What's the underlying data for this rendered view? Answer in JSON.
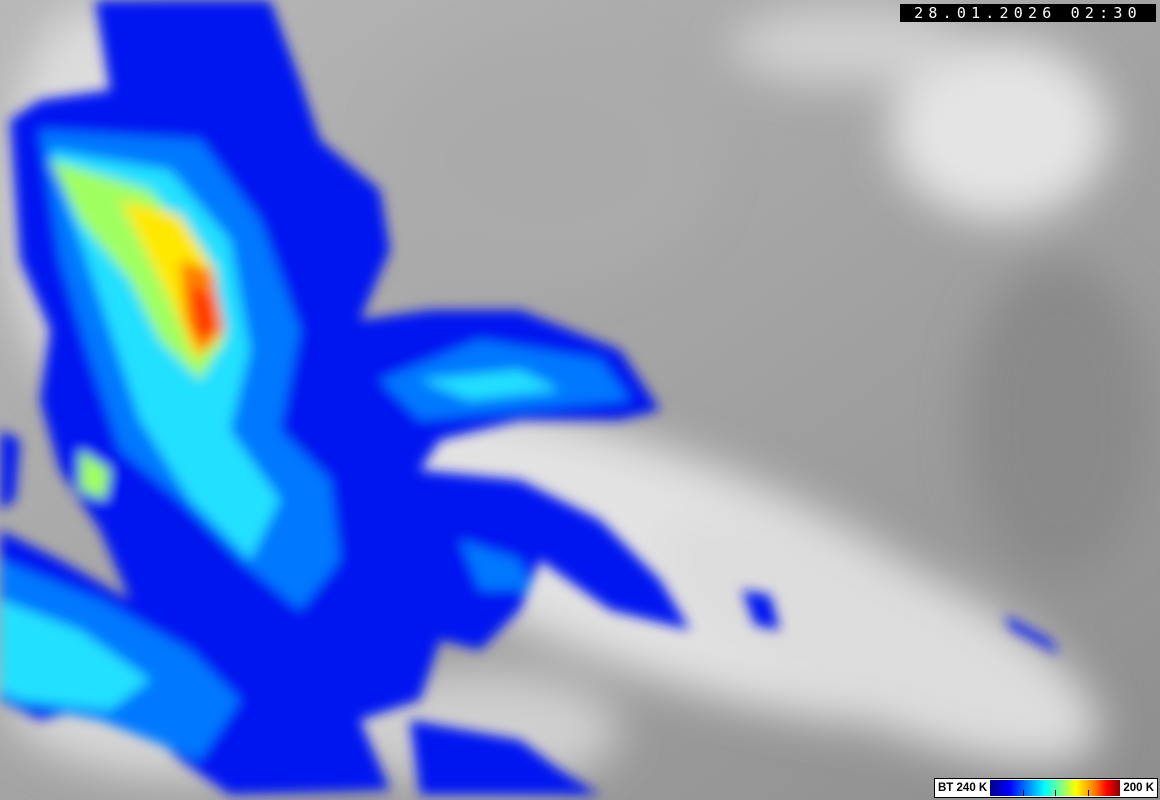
{
  "overlay": {
    "timestamp": "28.01.2026 02:30"
  },
  "legend": {
    "min_label": "BT 240 K",
    "max_label": "200 K",
    "colorscale": [
      "#00008c",
      "#0000ff",
      "#00a0ff",
      "#00ffff",
      "#80ff80",
      "#ffff00",
      "#ff8000",
      "#ff0000",
      "#8c0000"
    ]
  },
  "image": {
    "type": "infrared satellite cloud-top brightness temperature",
    "background": "grayscale cloud imagery",
    "colors": {
      "cold_low": "#0000ff",
      "mid": "#00ffff",
      "warm_mid": "#ffff00",
      "coldest": "#ff3000"
    }
  }
}
